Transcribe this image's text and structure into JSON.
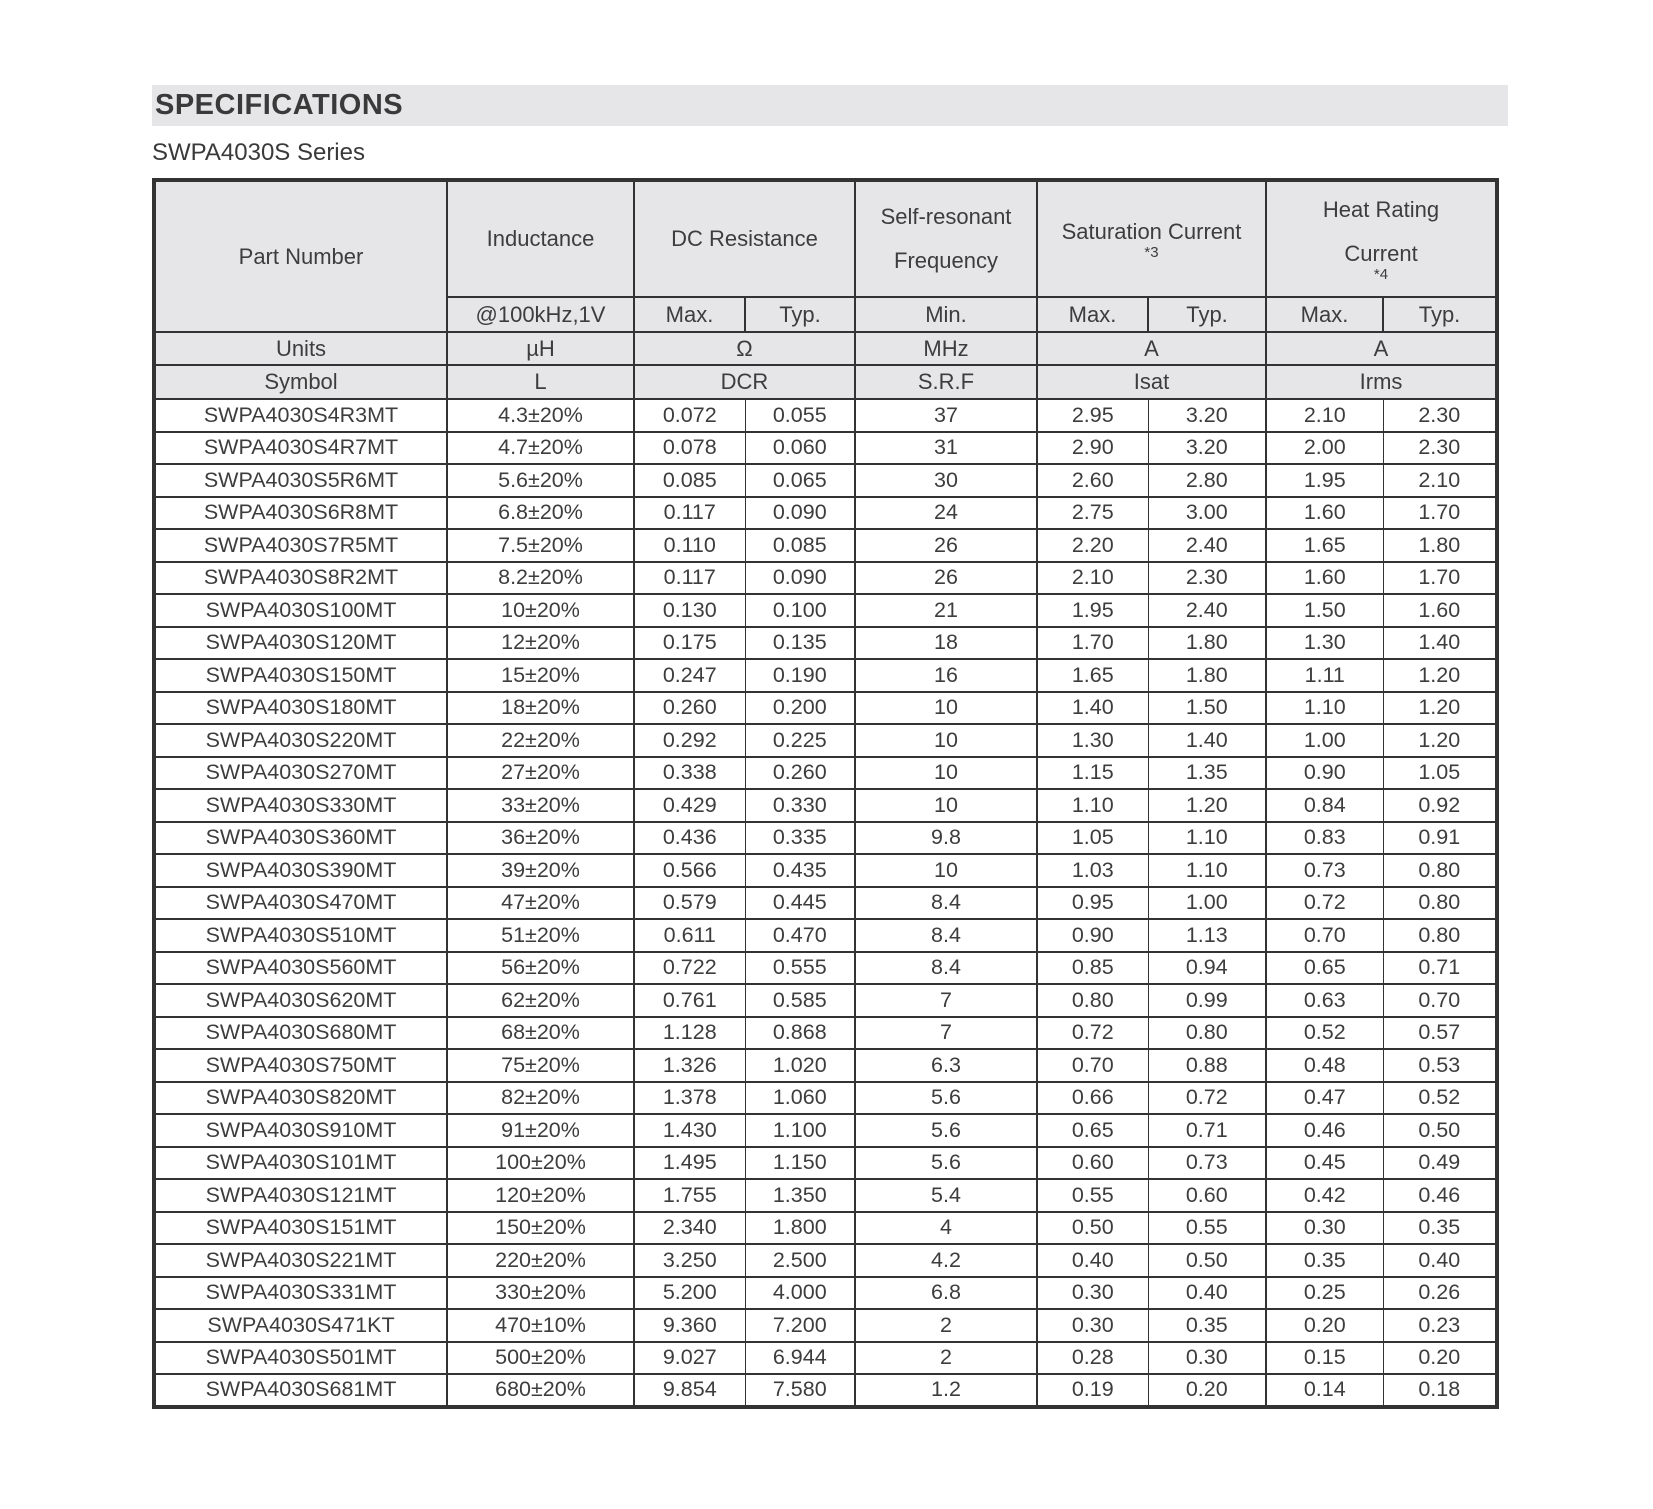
{
  "header": {
    "title": "SPECIFICATIONS",
    "series": "SWPA4030S Series"
  },
  "colors": {
    "header_background": "#e6e6e8",
    "border": "#333333",
    "text": "#3d3d3d"
  },
  "table": {
    "header": {
      "part_number": "Part Number",
      "inductance": "Inductance",
      "dc_resistance": "DC Resistance",
      "self_resonant_line1": "Self-resonant",
      "self_resonant_line2": "Frequency",
      "saturation_current": "Saturation Current",
      "saturation_note": "*3",
      "heat_rating_line1": "Heat Rating",
      "heat_rating_line2": "Current",
      "heat_note": "*4",
      "inductance_condition": "@100kHz,1V",
      "max_label": "Max.",
      "typ_label": "Typ.",
      "min_label": "Min."
    },
    "units_row": {
      "label": "Units",
      "inductance": "µH",
      "dcr": "Ω",
      "srf": "MHz",
      "saturation": "A",
      "heat": "A"
    },
    "symbol_row": {
      "label": "Symbol",
      "inductance": "L",
      "dcr": "DCR",
      "srf": "S.R.F",
      "saturation": "Isat",
      "heat": "Irms"
    },
    "columns": [
      "part-number-cell",
      "inductance-cell",
      "dcr-max-cell",
      "dcr-typ-cell",
      "srf-min-cell",
      "sat-max-cell",
      "sat-typ-cell",
      "heat-max-cell",
      "heat-typ-cell"
    ],
    "rows": [
      [
        "SWPA4030S4R3MT",
        "4.3±20%",
        "0.072",
        "0.055",
        "37",
        "2.95",
        "3.20",
        "2.10",
        "2.30"
      ],
      [
        "SWPA4030S4R7MT",
        "4.7±20%",
        "0.078",
        "0.060",
        "31",
        "2.90",
        "3.20",
        "2.00",
        "2.30"
      ],
      [
        "SWPA4030S5R6MT",
        "5.6±20%",
        "0.085",
        "0.065",
        "30",
        "2.60",
        "2.80",
        "1.95",
        "2.10"
      ],
      [
        "SWPA4030S6R8MT",
        "6.8±20%",
        "0.117",
        "0.090",
        "24",
        "2.75",
        "3.00",
        "1.60",
        "1.70"
      ],
      [
        "SWPA4030S7R5MT",
        "7.5±20%",
        "0.110",
        "0.085",
        "26",
        "2.20",
        "2.40",
        "1.65",
        "1.80"
      ],
      [
        "SWPA4030S8R2MT",
        "8.2±20%",
        "0.117",
        "0.090",
        "26",
        "2.10",
        "2.30",
        "1.60",
        "1.70"
      ],
      [
        "SWPA4030S100MT",
        "10±20%",
        "0.130",
        "0.100",
        "21",
        "1.95",
        "2.40",
        "1.50",
        "1.60"
      ],
      [
        "SWPA4030S120MT",
        "12±20%",
        "0.175",
        "0.135",
        "18",
        "1.70",
        "1.80",
        "1.30",
        "1.40"
      ],
      [
        "SWPA4030S150MT",
        "15±20%",
        "0.247",
        "0.190",
        "16",
        "1.65",
        "1.80",
        "1.11",
        "1.20"
      ],
      [
        "SWPA4030S180MT",
        "18±20%",
        "0.260",
        "0.200",
        "10",
        "1.40",
        "1.50",
        "1.10",
        "1.20"
      ],
      [
        "SWPA4030S220MT",
        "22±20%",
        "0.292",
        "0.225",
        "10",
        "1.30",
        "1.40",
        "1.00",
        "1.20"
      ],
      [
        "SWPA4030S270MT",
        "27±20%",
        "0.338",
        "0.260",
        "10",
        "1.15",
        "1.35",
        "0.90",
        "1.05"
      ],
      [
        "SWPA4030S330MT",
        "33±20%",
        "0.429",
        "0.330",
        "10",
        "1.10",
        "1.20",
        "0.84",
        "0.92"
      ],
      [
        "SWPA4030S360MT",
        "36±20%",
        "0.436",
        "0.335",
        "9.8",
        "1.05",
        "1.10",
        "0.83",
        "0.91"
      ],
      [
        "SWPA4030S390MT",
        "39±20%",
        "0.566",
        "0.435",
        "10",
        "1.03",
        "1.10",
        "0.73",
        "0.80"
      ],
      [
        "SWPA4030S470MT",
        "47±20%",
        "0.579",
        "0.445",
        "8.4",
        "0.95",
        "1.00",
        "0.72",
        "0.80"
      ],
      [
        "SWPA4030S510MT",
        "51±20%",
        "0.611",
        "0.470",
        "8.4",
        "0.90",
        "1.13",
        "0.70",
        "0.80"
      ],
      [
        "SWPA4030S560MT",
        "56±20%",
        "0.722",
        "0.555",
        "8.4",
        "0.85",
        "0.94",
        "0.65",
        "0.71"
      ],
      [
        "SWPA4030S620MT",
        "62±20%",
        "0.761",
        "0.585",
        "7",
        "0.80",
        "0.99",
        "0.63",
        "0.70"
      ],
      [
        "SWPA4030S680MT",
        "68±20%",
        "1.128",
        "0.868",
        "7",
        "0.72",
        "0.80",
        "0.52",
        "0.57"
      ],
      [
        "SWPA4030S750MT",
        "75±20%",
        "1.326",
        "1.020",
        "6.3",
        "0.70",
        "0.88",
        "0.48",
        "0.53"
      ],
      [
        "SWPA4030S820MT",
        "82±20%",
        "1.378",
        "1.060",
        "5.6",
        "0.66",
        "0.72",
        "0.47",
        "0.52"
      ],
      [
        "SWPA4030S910MT",
        "91±20%",
        "1.430",
        "1.100",
        "5.6",
        "0.65",
        "0.71",
        "0.46",
        "0.50"
      ],
      [
        "SWPA4030S101MT",
        "100±20%",
        "1.495",
        "1.150",
        "5.6",
        "0.60",
        "0.73",
        "0.45",
        "0.49"
      ],
      [
        "SWPA4030S121MT",
        "120±20%",
        "1.755",
        "1.350",
        "5.4",
        "0.55",
        "0.60",
        "0.42",
        "0.46"
      ],
      [
        "SWPA4030S151MT",
        "150±20%",
        "2.340",
        "1.800",
        "4",
        "0.50",
        "0.55",
        "0.30",
        "0.35"
      ],
      [
        "SWPA4030S221MT",
        "220±20%",
        "3.250",
        "2.500",
        "4.2",
        "0.40",
        "0.50",
        "0.35",
        "0.40"
      ],
      [
        "SWPA4030S331MT",
        "330±20%",
        "5.200",
        "4.000",
        "6.8",
        "0.30",
        "0.40",
        "0.25",
        "0.26"
      ],
      [
        "SWPA4030S471KT",
        "470±10%",
        "9.360",
        "7.200",
        "2",
        "0.30",
        "0.35",
        "0.20",
        "0.23"
      ],
      [
        "SWPA4030S501MT",
        "500±20%",
        "9.027",
        "6.944",
        "2",
        "0.28",
        "0.30",
        "0.15",
        "0.20"
      ],
      [
        "SWPA4030S681MT",
        "680±20%",
        "9.854",
        "7.580",
        "1.2",
        "0.19",
        "0.20",
        "0.14",
        "0.18"
      ]
    ]
  }
}
